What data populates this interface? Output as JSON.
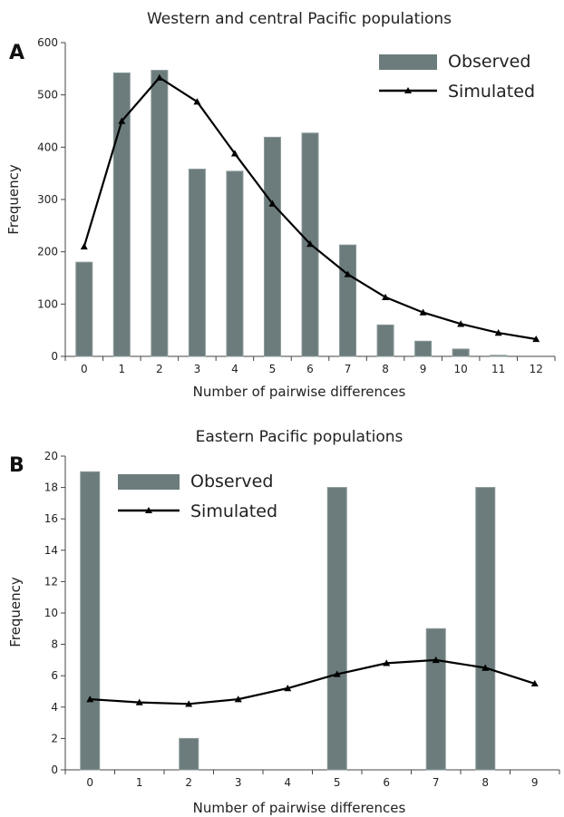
{
  "colors": {
    "observed": "#6c7c7c",
    "observed_edge": "#8a9898",
    "simulated": "#000000",
    "axis": "#444444"
  },
  "chart_data": [
    {
      "panel": "A",
      "type": "bar",
      "title": "Western and central Pacific populations",
      "xlabel": "Number of pairwise differences",
      "ylabel": "Frequency",
      "categories": [
        "0",
        "1",
        "2",
        "3",
        "4",
        "5",
        "6",
        "7",
        "8",
        "9",
        "10",
        "11",
        "12"
      ],
      "ylim": [
        0,
        600
      ],
      "yticks": [
        0,
        100,
        200,
        300,
        400,
        500,
        600
      ],
      "legend_position": "top-right",
      "series": [
        {
          "name": "Observed",
          "kind": "bar",
          "values": [
            180,
            542,
            547,
            358,
            354,
            419,
            427,
            213,
            60,
            29,
            14,
            2,
            0
          ]
        },
        {
          "name": "Simulated",
          "kind": "line",
          "marker": "triangle",
          "values": [
            210,
            450,
            533,
            487,
            388,
            292,
            215,
            157,
            113,
            84,
            62,
            45,
            33
          ]
        }
      ]
    },
    {
      "panel": "B",
      "type": "bar",
      "title": "Eastern Pacific populations",
      "xlabel": "Number of pairwise differences",
      "ylabel": "Frequency",
      "categories": [
        "0",
        "1",
        "2",
        "3",
        "4",
        "5",
        "6",
        "7",
        "8",
        "9"
      ],
      "ylim": [
        0,
        20
      ],
      "yticks": [
        0,
        2,
        4,
        6,
        8,
        10,
        12,
        14,
        16,
        18,
        20
      ],
      "legend_position": "top-left",
      "series": [
        {
          "name": "Observed",
          "kind": "bar",
          "values": [
            19,
            0,
            2,
            0,
            0,
            18,
            0,
            9,
            18,
            0
          ]
        },
        {
          "name": "Simulated",
          "kind": "line",
          "marker": "triangle",
          "values": [
            4.5,
            4.3,
            4.2,
            4.5,
            5.2,
            6.1,
            6.8,
            7.0,
            6.5,
            5.5
          ]
        }
      ]
    }
  ]
}
